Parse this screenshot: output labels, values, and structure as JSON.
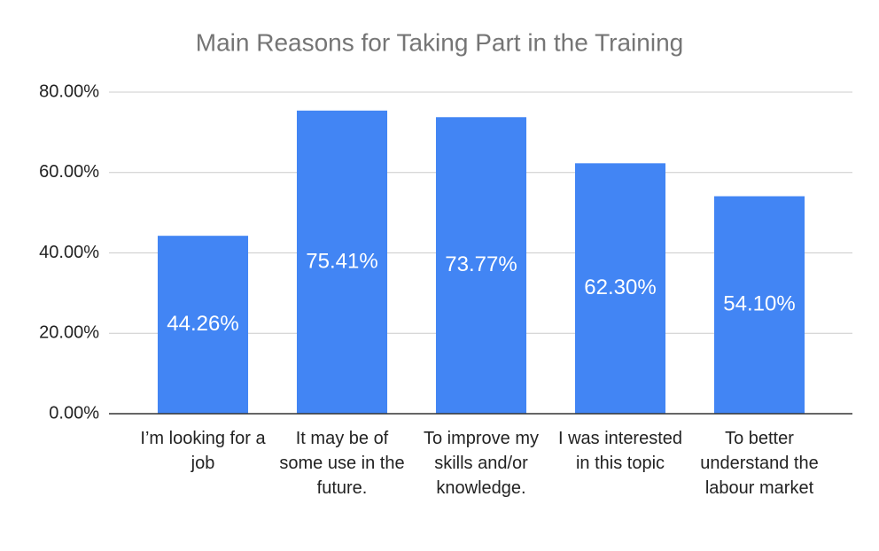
{
  "chart_data": {
    "type": "bar",
    "title": "Main Reasons for Taking Part in the Training",
    "categories": [
      "I’m looking for a job",
      "It may be of some use in the future.",
      "To improve my skills and/or knowledge.",
      "I was interested in this topic",
      "To better understand the labour market"
    ],
    "values": [
      44.26,
      75.41,
      73.77,
      62.3,
      54.1
    ],
    "value_labels": [
      "44.26%",
      "75.41%",
      "73.77%",
      "62.30%",
      "54.10%"
    ],
    "color": "#4285f4",
    "ylim": [
      0,
      80
    ],
    "yticks": [
      {
        "value": 0,
        "label": "0.00%"
      },
      {
        "value": 20,
        "label": "20.00%"
      },
      {
        "value": 40,
        "label": "40.00%"
      },
      {
        "value": 60,
        "label": "60.00%"
      },
      {
        "value": 80,
        "label": "80.00%"
      }
    ],
    "grid": true
  }
}
